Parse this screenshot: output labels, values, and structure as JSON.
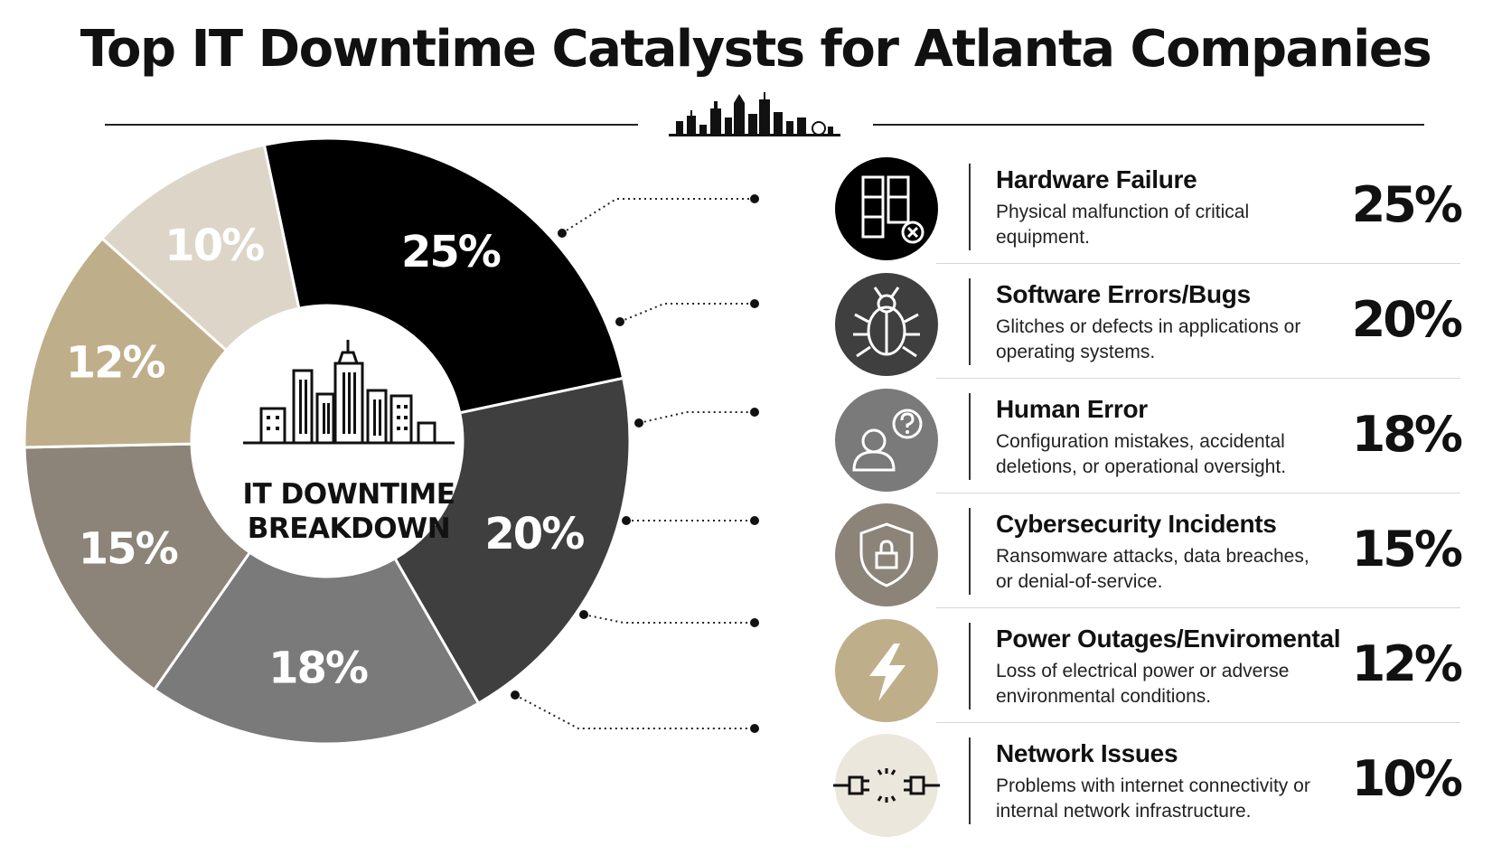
{
  "title": "Top IT Downtime Catalysts for Atlanta Companies",
  "center_label": [
    "IT DOWNTIME",
    "BREAKDOWN"
  ],
  "categories": [
    {
      "name": "Hardware Failure",
      "desc": "Physical malfunction of critical equipment.",
      "pct_label": "25%",
      "icon": "server-error-icon",
      "color": "#000000"
    },
    {
      "name": "Software Errors/Bugs",
      "desc": "Glitches or defects in applications or operating systems.",
      "pct_label": "20%",
      "icon": "bug-icon",
      "color": "#3f3f3f"
    },
    {
      "name": "Human Error",
      "desc": "Configuration mistakes, accidental deletions, or operational oversight.",
      "pct_label": "18%",
      "icon": "person-question-icon",
      "color": "#7a7a7a"
    },
    {
      "name": "Cybersecurity Incidents",
      "desc": "Ransomware attacks, data breaches, or denial-of-service.",
      "pct_label": "15%",
      "icon": "shield-lock-icon",
      "color": "#8c8478"
    },
    {
      "name": "Power Outages/Enviromental",
      "desc": "Loss of electrical power or adverse environmental conditions.",
      "pct_label": "12%",
      "icon": "lightning-icon",
      "color": "#bfae8a"
    },
    {
      "name": "Network Issues",
      "desc": "Problems with internet connectivity or internal network infrastructure.",
      "pct_label": "10%",
      "icon": "unplugged-cable-icon",
      "color": "#ddd6c8"
    }
  ],
  "chart_data": {
    "type": "pie",
    "donut": true,
    "title": "Top IT Downtime Catalysts for Atlanta Companies",
    "categories": [
      "Hardware Failure",
      "Software Errors/Bugs",
      "Human Error",
      "Cybersecurity Incidents",
      "Power Outages/Enviromental",
      "Network Issues"
    ],
    "values": [
      25,
      20,
      18,
      15,
      12,
      10
    ],
    "labels": [
      "25%",
      "20%",
      "18%",
      "15%",
      "12%",
      "10%"
    ],
    "colors": [
      "#000000",
      "#3f3f3f",
      "#7a7a7a",
      "#8c8478",
      "#bfae8a",
      "#ddd6c8"
    ],
    "legend": "right"
  }
}
